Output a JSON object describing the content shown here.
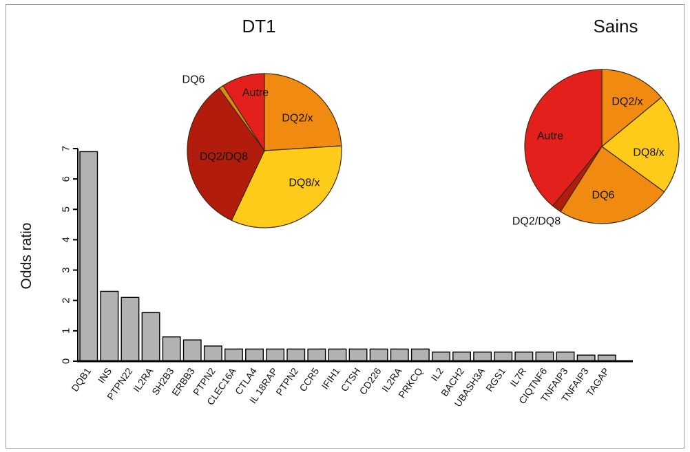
{
  "chart_data": [
    {
      "type": "bar",
      "title": "",
      "xlabel": "",
      "ylabel": "Odds ratio",
      "ylim": [
        0,
        7
      ],
      "yticks": [
        0,
        1,
        2,
        3,
        4,
        5,
        6,
        7
      ],
      "categories": [
        "DQB1",
        "INS",
        "PTPN22",
        "IL2RA",
        "SH2B3",
        "ERBB3",
        "PTPN2",
        "CLEC16A",
        "CTLA4",
        "IL 18RAP",
        "PTPN2",
        "CCR5",
        "IFIH1",
        "CTSH",
        "CD226",
        "IL2RA",
        "PRKCQ",
        "IL2",
        "BACH2",
        "UBASH3A",
        "RGS1",
        "IL7R",
        "CIQTNF6",
        "TNFAIP3",
        "TNFAIP3",
        "TAGAP"
      ],
      "values": [
        6.9,
        2.3,
        2.1,
        1.6,
        0.8,
        0.7,
        0.5,
        0.4,
        0.4,
        0.4,
        0.4,
        0.4,
        0.4,
        0.4,
        0.4,
        0.4,
        0.4,
        0.3,
        0.3,
        0.3,
        0.3,
        0.3,
        0.3,
        0.3,
        0.2,
        0.2
      ],
      "bar_color": "#b2b2b2",
      "grid": false
    },
    {
      "type": "pie",
      "title": "DT1",
      "slices": [
        {
          "label": "DQ2/x",
          "value": 24,
          "color": "#f18a11"
        },
        {
          "label": "DQ8/x",
          "value": 33,
          "color": "#fecb1a"
        },
        {
          "label": "DQ2/DQ8",
          "value": 33,
          "color": "#b11c0c"
        },
        {
          "label": "DQ6",
          "value": 1,
          "color": "#e08a10"
        },
        {
          "label": "Autre",
          "value": 9,
          "color": "#e3201b"
        }
      ]
    },
    {
      "type": "pie",
      "title": "Sains",
      "slices": [
        {
          "label": "DQ2/x",
          "value": 14,
          "color": "#f18a11"
        },
        {
          "label": "DQ8/x",
          "value": 21,
          "color": "#fecb1a"
        },
        {
          "label": "DQ6",
          "value": 24,
          "color": "#f18a11"
        },
        {
          "label": "DQ2/DQ8",
          "value": 2,
          "color": "#b11c0c"
        },
        {
          "label": "Autre",
          "value": 39,
          "color": "#e3201b"
        }
      ]
    }
  ]
}
